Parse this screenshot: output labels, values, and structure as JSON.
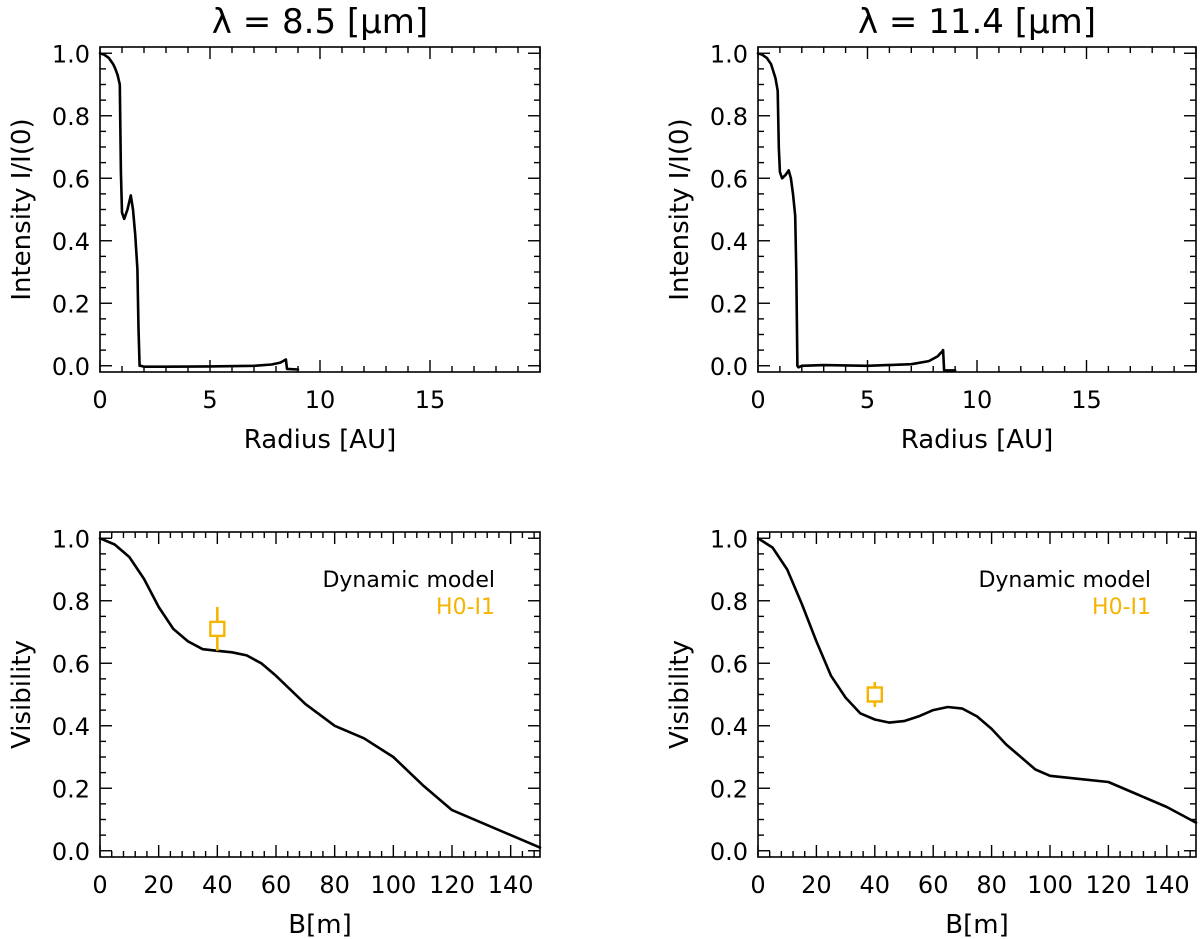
{
  "figure": {
    "titles": [
      "λ = 8.5 [μm]",
      "λ = 11.4 [μm]"
    ]
  },
  "chart_data": [
    {
      "id": "intensity_8p5",
      "type": "line",
      "title": "λ = 8.5 [μm]",
      "xlabel": "Radius [AU]",
      "ylabel": "Intensity I/I(0)",
      "xlim": [
        0,
        20
      ],
      "ylim": [
        -0.02,
        1.02
      ],
      "xticks": [
        0,
        5,
        10,
        15
      ],
      "xtick_labels": [
        "0",
        "5",
        "10",
        "15"
      ],
      "yticks": [
        0,
        0.2,
        0.4,
        0.6,
        0.8,
        1.0
      ],
      "ytick_labels": [
        "0.0",
        "0.2",
        "0.4",
        "0.6",
        "0.8",
        "1.0"
      ],
      "series": [
        {
          "name": "Intensity",
          "color": "#000000",
          "x": [
            0.0,
            0.2,
            0.4,
            0.6,
            0.7,
            0.8,
            0.9,
            0.95,
            1.0,
            1.1,
            1.25,
            1.4,
            1.5,
            1.6,
            1.7,
            1.75,
            1.8,
            1.85,
            2.0,
            3.0,
            5.0,
            7.0,
            7.8,
            8.2,
            8.4,
            8.45,
            8.5,
            9.0
          ],
          "y": [
            1.0,
            0.995,
            0.985,
            0.965,
            0.95,
            0.93,
            0.9,
            0.62,
            0.49,
            0.47,
            0.5,
            0.545,
            0.5,
            0.42,
            0.31,
            0.12,
            0.0,
            0.0,
            -0.003,
            -0.003,
            -0.002,
            0.0,
            0.004,
            0.01,
            0.018,
            0.02,
            -0.01,
            -0.012
          ]
        }
      ]
    },
    {
      "id": "intensity_11p4",
      "type": "line",
      "title": "λ = 11.4 [μm]",
      "xlabel": "Radius [AU]",
      "ylabel": "Intensity I/I(0)",
      "xlim": [
        0,
        20
      ],
      "ylim": [
        -0.02,
        1.02
      ],
      "xticks": [
        0,
        5,
        10,
        15
      ],
      "xtick_labels": [
        "0",
        "5",
        "10",
        "15"
      ],
      "yticks": [
        0,
        0.2,
        0.4,
        0.6,
        0.8,
        1.0
      ],
      "ytick_labels": [
        "0.0",
        "0.2",
        "0.4",
        "0.6",
        "0.8",
        "1.0"
      ],
      "series": [
        {
          "name": "Intensity",
          "color": "#000000",
          "x": [
            0.0,
            0.2,
            0.4,
            0.6,
            0.8,
            0.9,
            0.95,
            1.0,
            1.1,
            1.25,
            1.4,
            1.5,
            1.6,
            1.7,
            1.75,
            1.8,
            1.85,
            2.0,
            3.0,
            5.0,
            7.0,
            7.8,
            8.2,
            8.4,
            8.45,
            8.5,
            9.0
          ],
          "y": [
            1.0,
            0.995,
            0.985,
            0.965,
            0.92,
            0.88,
            0.7,
            0.62,
            0.6,
            0.61,
            0.625,
            0.6,
            0.55,
            0.48,
            0.3,
            0.0,
            -0.005,
            0.0,
            0.002,
            0.0,
            0.005,
            0.015,
            0.03,
            0.045,
            0.05,
            -0.015,
            -0.015
          ]
        }
      ]
    },
    {
      "id": "visibility_8p5",
      "type": "line",
      "title": "",
      "xlabel": "B[m]",
      "ylabel": "Visibility",
      "xlim": [
        0,
        150
      ],
      "ylim": [
        -0.02,
        1.02
      ],
      "xticks": [
        0,
        20,
        40,
        60,
        80,
        100,
        120,
        140
      ],
      "xtick_labels": [
        "0",
        "20",
        "40",
        "60",
        "80",
        "100",
        "120",
        "140"
      ],
      "yticks": [
        0,
        0.2,
        0.4,
        0.6,
        0.8,
        1.0
      ],
      "ytick_labels": [
        "0.0",
        "0.2",
        "0.4",
        "0.6",
        "0.8",
        "1.0"
      ],
      "legend": {
        "position": "top-right",
        "entries": [
          "Dynamic model",
          "H0-I1"
        ]
      },
      "series": [
        {
          "name": "Dynamic model",
          "color": "#000000",
          "x": [
            0,
            5,
            10,
            15,
            20,
            25,
            30,
            35,
            40,
            45,
            50,
            55,
            60,
            70,
            80,
            90,
            100,
            110,
            120,
            130,
            140,
            150
          ],
          "y": [
            1.0,
            0.98,
            0.94,
            0.87,
            0.78,
            0.71,
            0.67,
            0.645,
            0.64,
            0.635,
            0.625,
            0.6,
            0.56,
            0.47,
            0.4,
            0.36,
            0.3,
            0.21,
            0.13,
            0.09,
            0.05,
            0.01
          ]
        }
      ],
      "points": [
        {
          "name": "H0-I1",
          "color": "#f5b400",
          "x": 40,
          "y": 0.71,
          "yerr": 0.07
        }
      ]
    },
    {
      "id": "visibility_11p4",
      "type": "line",
      "title": "",
      "xlabel": "B[m]",
      "ylabel": "Visibility",
      "xlim": [
        0,
        150
      ],
      "ylim": [
        -0.02,
        1.02
      ],
      "xticks": [
        0,
        20,
        40,
        60,
        80,
        100,
        120,
        140
      ],
      "xtick_labels": [
        "0",
        "20",
        "40",
        "60",
        "80",
        "100",
        "120",
        "140"
      ],
      "yticks": [
        0,
        0.2,
        0.4,
        0.6,
        0.8,
        1.0
      ],
      "ytick_labels": [
        "0.0",
        "0.2",
        "0.4",
        "0.6",
        "0.8",
        "1.0"
      ],
      "legend": {
        "position": "top-right",
        "entries": [
          "Dynamic model",
          "H0-I1"
        ]
      },
      "series": [
        {
          "name": "Dynamic model",
          "color": "#000000",
          "x": [
            0,
            5,
            10,
            15,
            20,
            25,
            30,
            35,
            40,
            45,
            50,
            55,
            60,
            65,
            70,
            75,
            80,
            85,
            90,
            95,
            100,
            110,
            120,
            130,
            140,
            150
          ],
          "y": [
            1.0,
            0.97,
            0.9,
            0.79,
            0.67,
            0.56,
            0.49,
            0.44,
            0.42,
            0.41,
            0.415,
            0.43,
            0.45,
            0.46,
            0.455,
            0.43,
            0.39,
            0.34,
            0.3,
            0.26,
            0.24,
            0.23,
            0.22,
            0.18,
            0.14,
            0.09
          ]
        }
      ],
      "points": [
        {
          "name": "H0-I1",
          "color": "#f5b400",
          "x": 40,
          "y": 0.5,
          "yerr": 0.04
        }
      ]
    }
  ]
}
